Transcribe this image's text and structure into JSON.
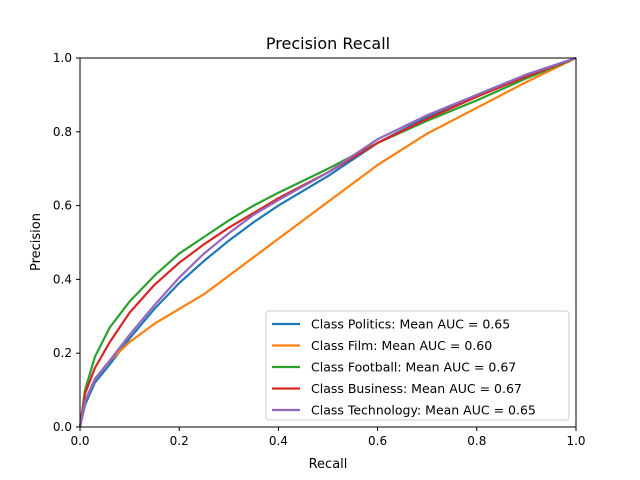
{
  "chart_data": {
    "type": "line",
    "title": "Precision Recall",
    "xlabel": "Recall",
    "ylabel": "Precision",
    "xlim": [
      0,
      1
    ],
    "ylim": [
      0,
      1
    ],
    "xticks": [
      "0.0",
      "0.2",
      "0.4",
      "0.6",
      "0.8",
      "1.0"
    ],
    "yticks": [
      "0.0",
      "0.2",
      "0.4",
      "0.6",
      "0.8",
      "1.0"
    ],
    "grid": false,
    "legend_position": "lower-right",
    "series": [
      {
        "name": "Class Politics: Mean AUC = 0.65",
        "color": "#1f77b4",
        "points": [
          [
            0,
            0
          ],
          [
            0.01,
            0.06
          ],
          [
            0.03,
            0.12
          ],
          [
            0.06,
            0.17
          ],
          [
            0.1,
            0.24
          ],
          [
            0.15,
            0.32
          ],
          [
            0.2,
            0.39
          ],
          [
            0.25,
            0.45
          ],
          [
            0.3,
            0.505
          ],
          [
            0.35,
            0.555
          ],
          [
            0.4,
            0.6
          ],
          [
            0.5,
            0.68
          ],
          [
            0.6,
            0.77
          ],
          [
            0.7,
            0.84
          ],
          [
            0.8,
            0.9
          ],
          [
            0.9,
            0.955
          ],
          [
            1,
            1
          ]
        ]
      },
      {
        "name": "Class Film: Mean AUC = 0.60",
        "color": "#ff7f0e",
        "points": [
          [
            0,
            0
          ],
          [
            0.01,
            0.07
          ],
          [
            0.03,
            0.13
          ],
          [
            0.06,
            0.18
          ],
          [
            0.1,
            0.23
          ],
          [
            0.15,
            0.28
          ],
          [
            0.2,
            0.32
          ],
          [
            0.25,
            0.36
          ],
          [
            0.3,
            0.41
          ],
          [
            0.35,
            0.46
          ],
          [
            0.4,
            0.51
          ],
          [
            0.5,
            0.61
          ],
          [
            0.6,
            0.71
          ],
          [
            0.7,
            0.795
          ],
          [
            0.8,
            0.865
          ],
          [
            0.9,
            0.935
          ],
          [
            1,
            1
          ]
        ]
      },
      {
        "name": "Class Football: Mean AUC = 0.67",
        "color": "#2ca02c",
        "points": [
          [
            0,
            0
          ],
          [
            0.01,
            0.1
          ],
          [
            0.03,
            0.19
          ],
          [
            0.06,
            0.27
          ],
          [
            0.1,
            0.34
          ],
          [
            0.15,
            0.41
          ],
          [
            0.2,
            0.47
          ],
          [
            0.25,
            0.515
          ],
          [
            0.3,
            0.56
          ],
          [
            0.35,
            0.6
          ],
          [
            0.4,
            0.635
          ],
          [
            0.5,
            0.7
          ],
          [
            0.6,
            0.77
          ],
          [
            0.7,
            0.83
          ],
          [
            0.8,
            0.885
          ],
          [
            0.9,
            0.945
          ],
          [
            1,
            1
          ]
        ]
      },
      {
        "name": "Class Business: Mean AUC = 0.67",
        "color": "#d62728",
        "points": [
          [
            0,
            0
          ],
          [
            0.01,
            0.09
          ],
          [
            0.03,
            0.16
          ],
          [
            0.06,
            0.23
          ],
          [
            0.1,
            0.31
          ],
          [
            0.15,
            0.385
          ],
          [
            0.2,
            0.445
          ],
          [
            0.25,
            0.495
          ],
          [
            0.3,
            0.54
          ],
          [
            0.35,
            0.58
          ],
          [
            0.4,
            0.62
          ],
          [
            0.5,
            0.69
          ],
          [
            0.6,
            0.77
          ],
          [
            0.7,
            0.835
          ],
          [
            0.8,
            0.895
          ],
          [
            0.9,
            0.95
          ],
          [
            1,
            1
          ]
        ]
      },
      {
        "name": "Class Technology: Mean AUC = 0.65",
        "color": "#9467bd",
        "points": [
          [
            0,
            0
          ],
          [
            0.01,
            0.07
          ],
          [
            0.03,
            0.13
          ],
          [
            0.06,
            0.18
          ],
          [
            0.1,
            0.25
          ],
          [
            0.15,
            0.33
          ],
          [
            0.2,
            0.405
          ],
          [
            0.25,
            0.47
          ],
          [
            0.3,
            0.525
          ],
          [
            0.35,
            0.575
          ],
          [
            0.4,
            0.615
          ],
          [
            0.5,
            0.69
          ],
          [
            0.6,
            0.78
          ],
          [
            0.7,
            0.845
          ],
          [
            0.8,
            0.9
          ],
          [
            0.9,
            0.955
          ],
          [
            1,
            1
          ]
        ]
      }
    ]
  }
}
